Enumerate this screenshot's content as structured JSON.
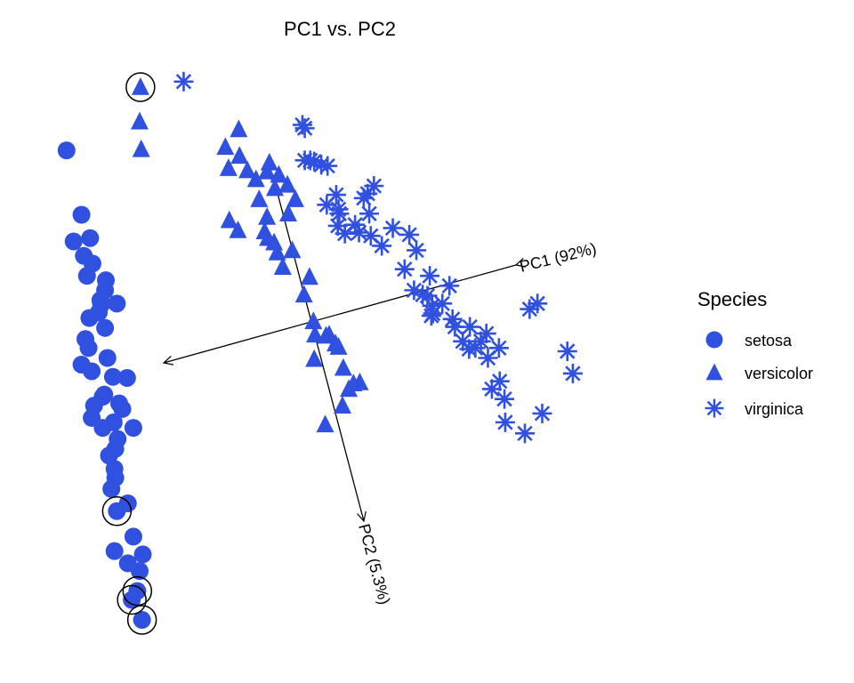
{
  "chart_data": {
    "type": "scatter",
    "title": "PC1 vs. PC2",
    "xlabel": "",
    "ylabel": "",
    "grid": false,
    "legend_position": "right",
    "marker_color": "#3050E0",
    "highlight_color": "#000000",
    "legend": {
      "title": "Species",
      "entries": [
        {
          "name": "setosa",
          "shape": "circle"
        },
        {
          "name": "versicolor",
          "shape": "triangle"
        },
        {
          "name": "virginica",
          "shape": "asterisk"
        }
      ]
    },
    "loadings": [
      {
        "label": "PC1 (92%)"
      },
      {
        "label": "PC2 (5.3%)"
      }
    ],
    "xlim": [
      -3.2,
      4.2
    ],
    "ylim": [
      -3.0,
      2.0
    ],
    "series": [
      {
        "name": "setosa",
        "shape": "circle",
        "x": [
          -3.01,
          -2.82,
          -2.92,
          -2.71,
          -2.79,
          -2.68,
          -2.51,
          -2.75,
          -2.52,
          -2.58,
          -2.37,
          -2.57,
          -2.72,
          -2.6,
          -2.52,
          -2.77,
          -2.73,
          -2.82,
          -2.69,
          -2.49,
          -2.42,
          -2.24,
          -2.53,
          -2.55,
          -2.34,
          -2.66,
          -2.69,
          -2.3,
          -2.41,
          -2.55,
          -2.16,
          -2.36,
          -2.39,
          -2.47,
          -2.4,
          -2.39,
          -2.44,
          -2.37,
          -2.23,
          -2.16,
          -2.4,
          -2.23,
          -2.08,
          -2.18,
          -2.11,
          -2.05,
          -2.04
        ],
        "y": [
          1.35,
          0.77,
          0.53,
          0.56,
          0.4,
          0.33,
          0.18,
          0.22,
          0.09,
          0.0,
          -0.03,
          -0.04,
          -0.16,
          -0.11,
          -0.25,
          -0.35,
          -0.43,
          -0.58,
          -0.64,
          -0.52,
          -0.69,
          -0.7,
          -0.85,
          -0.87,
          -0.93,
          -0.95,
          -1.06,
          -0.98,
          -1.1,
          -1.15,
          -1.15,
          -1.25,
          -1.34,
          -1.4,
          -1.52,
          -1.6,
          -1.7,
          -1.9,
          -1.83,
          -2.13,
          -2.26,
          -2.37,
          -2.44,
          -2.7,
          -2.62,
          -2.88,
          -2.29
        ]
      },
      {
        "name": "versicolor",
        "shape": "triangle",
        "x": [
          -2.07,
          -2.08,
          -2.06,
          -0.99,
          -0.82,
          -0.95,
          -0.81,
          -0.71,
          -0.6,
          -0.43,
          -0.46,
          -0.31,
          -0.36,
          -0.2,
          -0.56,
          -0.46,
          -0.94,
          -0.45,
          -0.37,
          -0.33,
          -0.83,
          -0.19,
          -0.1,
          -0.14,
          -0.49,
          -0.26,
          0.08,
          0.01,
          0.13,
          0.15,
          0.14,
          0.29,
          0.33,
          0.45,
          0.41,
          0.51,
          0.58,
          0.72,
          0.64,
          0.5,
          0.28
        ],
        "y": [
          1.92,
          1.61,
          1.36,
          1.38,
          1.54,
          1.19,
          1.3,
          1.17,
          1.09,
          1.24,
          1.16,
          1.13,
          1.01,
          1.04,
          0.91,
          0.75,
          0.72,
          0.56,
          0.52,
          0.43,
          0.63,
          0.78,
          0.91,
          0.45,
          0.62,
          0.3,
          0.21,
          0.05,
          -0.19,
          -0.31,
          -0.53,
          -0.32,
          -0.31,
          -0.42,
          -0.39,
          -0.61,
          -0.8,
          -0.74,
          -0.75,
          -0.95,
          -1.12
        ]
      },
      {
        "name": "virginica",
        "shape": "asterisk",
        "x": [
          -1.52,
          -0.01,
          0.02,
          0.02,
          0.09,
          0.14,
          0.23,
          0.31,
          0.42,
          0.46,
          0.44,
          0.66,
          0.84,
          0.77,
          0.82,
          0.9,
          1.35,
          1.44,
          1.61,
          1.58,
          1.63,
          1.65,
          1.9,
          2.12,
          2.49,
          2.35,
          2.5,
          2.56,
          2.98,
          2.88,
          3.36,
          3.43,
          0.3,
          0.45,
          0.53,
          0.71,
          0.86,
          1.0,
          1.14,
          1.29,
          1.41,
          1.52,
          1.64,
          1.77,
          1.86,
          1.93,
          2.03,
          2.11,
          2.19,
          2.26,
          2.33,
          2.4,
          2.57,
          2.82,
          3.04
        ],
        "y": [
          1.97,
          1.58,
          1.55,
          1.26,
          1.26,
          1.25,
          1.22,
          1.21,
          0.95,
          0.78,
          0.67,
          0.68,
          0.78,
          0.92,
          0.96,
          1.03,
          0.59,
          0.45,
          0.22,
          0.04,
          -0.14,
          -0.12,
          -0.17,
          -0.24,
          -0.43,
          -0.52,
          -0.73,
          -0.89,
          -0.03,
          -0.08,
          -0.46,
          -0.66,
          0.86,
          0.82,
          0.6,
          0.61,
          0.58,
          0.49,
          0.65,
          0.28,
          0.09,
          0.05,
          -0.05,
          -0.03,
          0.13,
          -0.24,
          -0.37,
          -0.44,
          -0.43,
          -0.37,
          -0.3,
          -0.8,
          -1.1,
          -1.2,
          -1.02
        ]
      }
    ],
    "highlighted_points": [
      {
        "series": "versicolor",
        "x": -2.07,
        "y": 1.92
      },
      {
        "series": "setosa",
        "x": -2.37,
        "y": -1.9
      },
      {
        "series": "setosa",
        "x": -2.18,
        "y": -2.7
      },
      {
        "series": "setosa",
        "x": -2.11,
        "y": -2.62
      },
      {
        "series": "setosa",
        "x": -2.05,
        "y": -2.88
      }
    ]
  }
}
